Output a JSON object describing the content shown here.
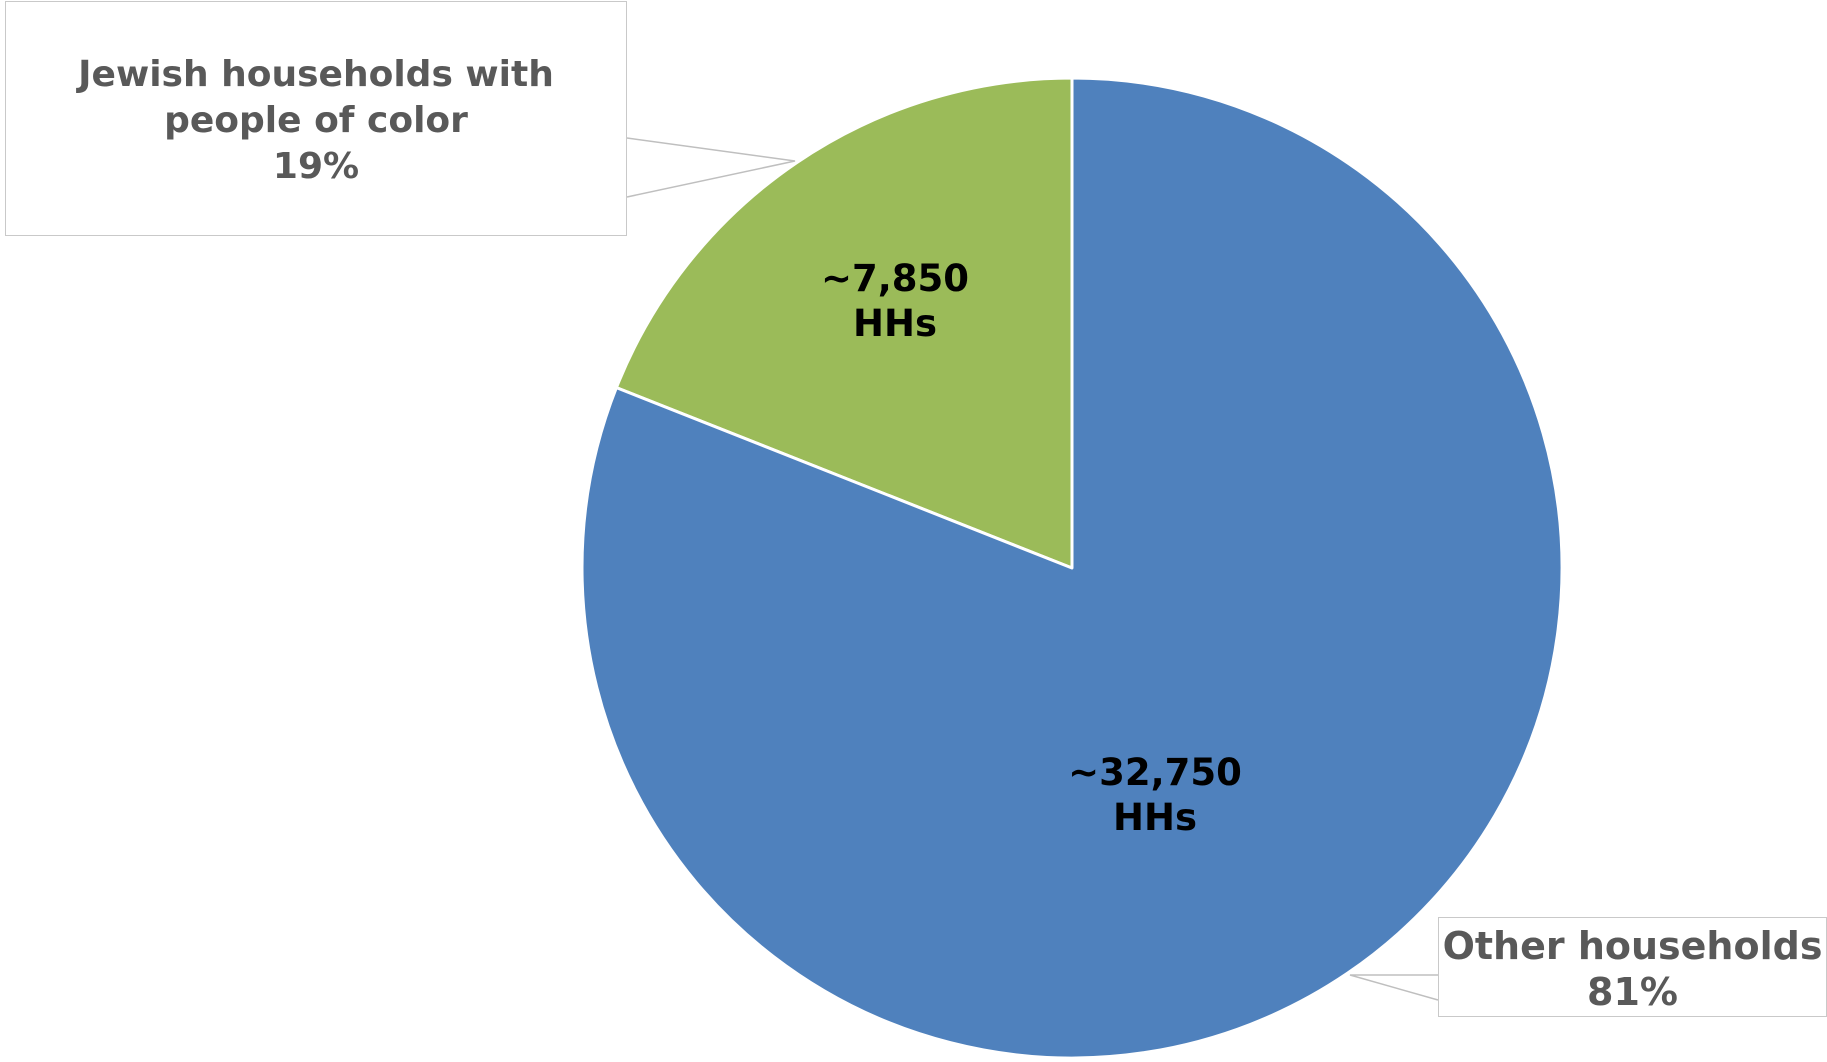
{
  "chart_data": {
    "type": "pie",
    "categories": [
      "Jewish households with people of color",
      "Other households"
    ],
    "values": [
      19,
      81
    ],
    "value_unit": "%",
    "household_counts": [
      "~7,850 HHs",
      "~32,750 HHs"
    ],
    "colors": [
      "#9bbb59",
      "#4f81bd"
    ],
    "start_angle_deg": 0,
    "direction": "counterclockwise-from-top for first slice",
    "slice_border_color": "#ffffff",
    "callouts": [
      {
        "slice": 0,
        "lines": [
          "Jewish households with",
          "people of color",
          "19%"
        ]
      },
      {
        "slice": 1,
        "lines": [
          "Other households",
          "81%"
        ]
      }
    ],
    "inner_labels": [
      {
        "slice": 0,
        "lines": [
          "~7,850",
          "HHs"
        ]
      },
      {
        "slice": 1,
        "lines": [
          "~32,750",
          "HHs"
        ]
      }
    ]
  }
}
